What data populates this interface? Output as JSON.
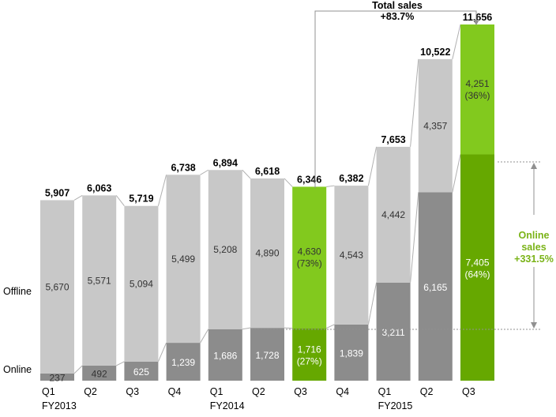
{
  "chart_data": {
    "type": "bar",
    "stacked": true,
    "categories": [
      "Q1",
      "Q2",
      "Q3",
      "Q4",
      "Q1",
      "Q2",
      "Q3",
      "Q4",
      "Q1",
      "Q2",
      "Q3"
    ],
    "year_labels": [
      "FY2013",
      "",
      "",
      "",
      "FY2014",
      "",
      "",
      "",
      "FY2015",
      "",
      ""
    ],
    "series": [
      {
        "name": "Online",
        "values": [
          237,
          492,
          625,
          1239,
          1686,
          1728,
          1716,
          1839,
          3211,
          6165,
          7405
        ],
        "labels": [
          "237",
          "492",
          "625",
          "1,239",
          "1,686",
          "1,728",
          "1,716\n(27%)",
          "1,839",
          "3,211",
          "6,165",
          "7,405\n(64%)"
        ]
      },
      {
        "name": "Offline",
        "values": [
          5670,
          5571,
          5094,
          5499,
          5208,
          4890,
          4630,
          4543,
          4442,
          4357,
          4251
        ],
        "labels": [
          "5,670",
          "5,571",
          "5,094",
          "5,499",
          "5,208",
          "4,890",
          "4,630\n(73%)",
          "4,543",
          "4,442",
          "4,357",
          "4,251\n(36%)"
        ]
      }
    ],
    "totals": [
      5907,
      6063,
      5719,
      6738,
      6894,
      6618,
      6346,
      6382,
      7653,
      10522,
      11656
    ],
    "total_labels": [
      "5,907",
      "6,063",
      "5,719",
      "6,738",
      "6,894",
      "6,618",
      "6,346",
      "6,382",
      "7,653",
      "10,522",
      "11,656"
    ],
    "highlight_index": [
      6,
      10
    ],
    "annotations": {
      "total_sales": {
        "line1": "Total sales",
        "line2": "+83.7%"
      },
      "online_sales": {
        "line1": "Online",
        "line2": "sales",
        "line3": "+331.5%"
      }
    },
    "ylim": [
      0,
      12000
    ],
    "grid": false,
    "legend": "left-inline",
    "colors": {
      "online": "#8c8c8c",
      "offline": "#c8c8c8",
      "online_highlight": "#66a800",
      "offline_highlight": "#82c91e",
      "accent_text": "#7ab317",
      "connector": "#b0b0b0"
    }
  }
}
